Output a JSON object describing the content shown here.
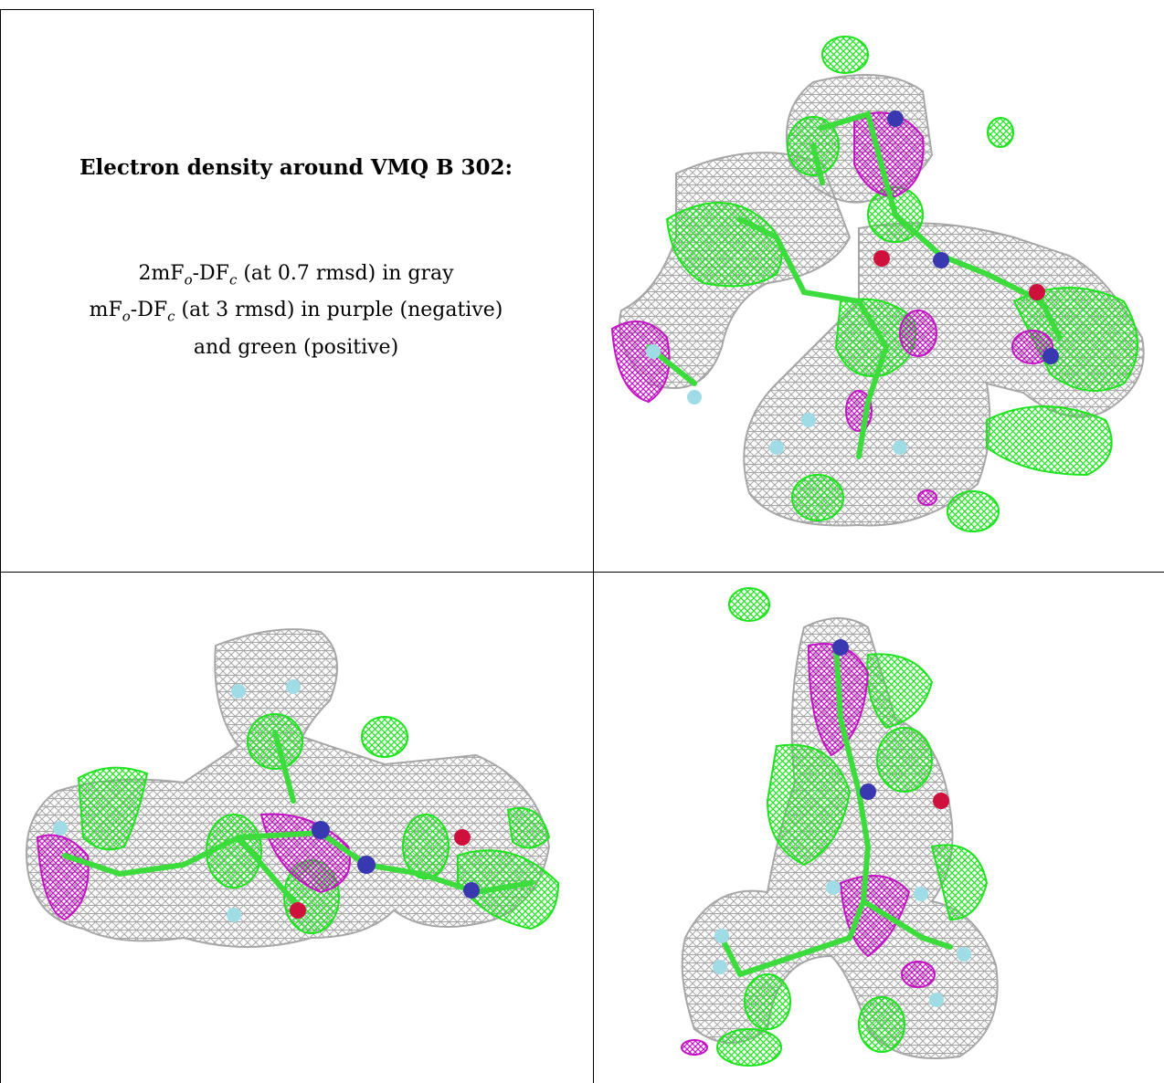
{
  "caption": {
    "title": "Electron density around VMQ B 302:",
    "line1": {
      "pre": "2mF",
      "sub1": "o",
      "mid": "-DF",
      "sub2": "c",
      "post": " (at 0.7 rmsd) in gray"
    },
    "line2": {
      "pre": "mF",
      "sub1": "o",
      "mid": "-DF",
      "sub2": "c",
      "post": " (at 3 rmsd) in purple (negative)"
    },
    "line3": "and green (positive)"
  },
  "colors": {
    "mesh_2fofc": "#a6a6a6",
    "mesh_positive": "#1ee31e",
    "mesh_negative": "#c314c3",
    "atom_carbon": "#3cdc3c",
    "atom_nitrogen": "#3838b0",
    "atom_oxygen": "#d0103c",
    "atom_fluorine": "#a0dce6",
    "grid_lines": "#000000"
  },
  "panels": [
    {
      "view": "top-right"
    },
    {
      "view": "bottom-left"
    },
    {
      "view": "bottom-right"
    }
  ]
}
